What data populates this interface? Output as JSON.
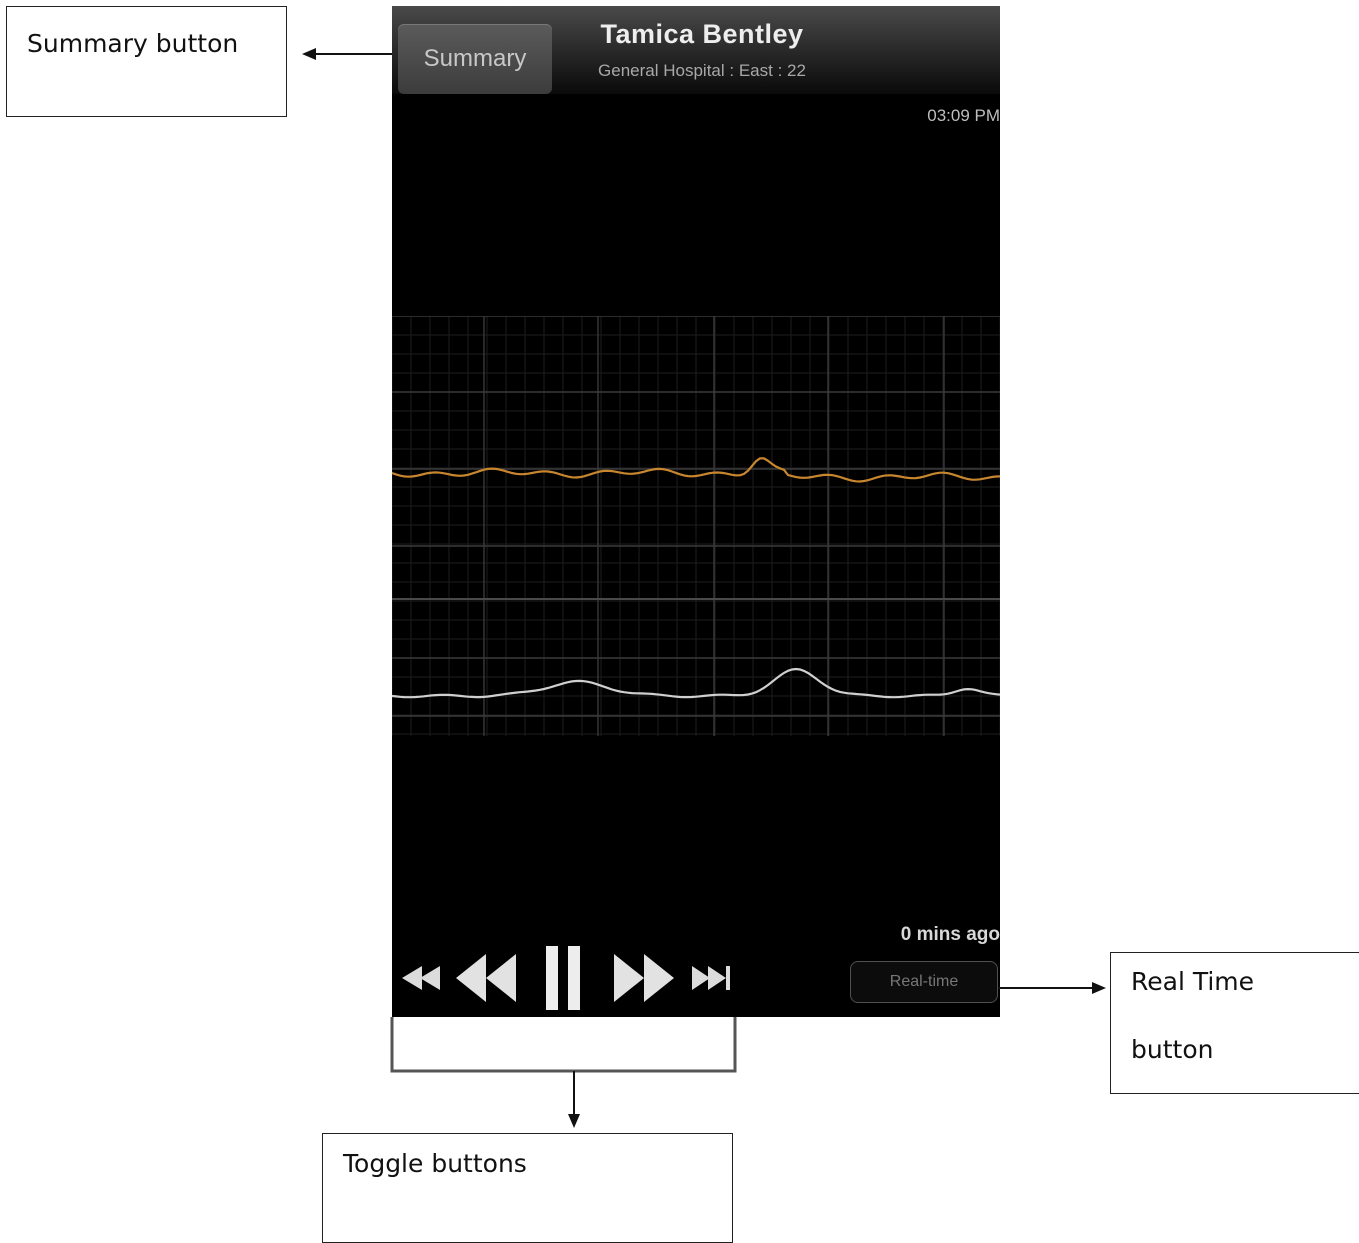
{
  "annotations": {
    "summary_button": "Summary button",
    "real_time_line1": "Real Time",
    "real_time_line2": "button",
    "toggle_buttons": "Toggle buttons"
  },
  "screen": {
    "summary_label": "Summary",
    "patient_name": "Tamica Bentley",
    "patient_location": "General Hospital : East : 22",
    "clock": "03:09 PM",
    "elapsed": "0 mins ago",
    "realtime_label": "Real-time"
  },
  "playback_controls": [
    "skip-to-start-icon",
    "rewind-icon",
    "pause-icon",
    "fast-forward-icon",
    "skip-to-end-icon"
  ],
  "colors": {
    "fetal_heart_rate_trace": "#c8862e",
    "contraction_trace": "#cfcfcf",
    "grid": "#3a3a3a",
    "screen_background": "#000000"
  }
}
